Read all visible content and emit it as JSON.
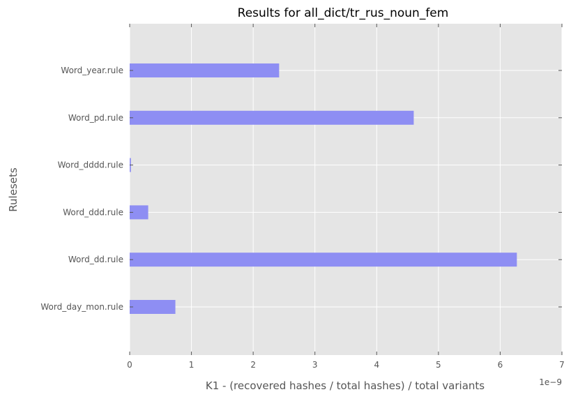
{
  "chart_data": {
    "type": "bar",
    "orientation": "horizontal",
    "title": "Results for all_dict/tr_rus_noun_fem",
    "xlabel": "K1 - (recovered hashes / total hashes) / total variants",
    "ylabel": "Rulesets",
    "x_offset_label": "1e−9",
    "xlim": [
      0,
      7
    ],
    "x_ticks": [
      "0",
      "1",
      "2",
      "3",
      "4",
      "5",
      "6",
      "7"
    ],
    "categories": [
      "Word_year.rule",
      "Word_pd.rule",
      "Word_dddd.rule",
      "Word_ddd.rule",
      "Word_dd.rule",
      "Word_day_mon.rule"
    ],
    "values": [
      2.42,
      4.6,
      0.02,
      0.3,
      6.27,
      0.74
    ],
    "grid": true,
    "colors": {
      "bar": "#8e8ef3",
      "plot_background": "#e5e5e5",
      "grid": "#ffffff"
    }
  }
}
